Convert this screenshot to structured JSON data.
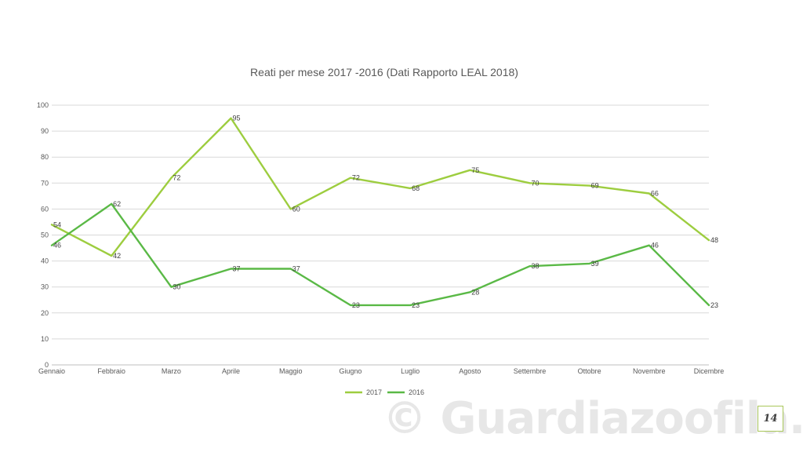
{
  "page_number": "14",
  "watermark": "© Guardiazoofila.it",
  "colors": {
    "series_2017": "#9dcd3f",
    "series_2016": "#5ab946",
    "grid": "#d9d9d9",
    "axis": "#bfbfbf"
  },
  "chart_data": {
    "type": "line",
    "title": "Reati per mese 2017 -2016 (Dati Rapporto LEAL 2018)",
    "xlabel": "",
    "ylabel": "",
    "ylim": [
      0,
      100
    ],
    "yticks": [
      0,
      10,
      20,
      30,
      40,
      50,
      60,
      70,
      80,
      90,
      100
    ],
    "grid": true,
    "legend_position": "bottom",
    "categories": [
      "Gennaio",
      "Febbraio",
      "Marzo",
      "Aprile",
      "Maggio",
      "Giugno",
      "Luglio",
      "Agosto",
      "Settembre",
      "Ottobre",
      "Novembre",
      "Dicembre"
    ],
    "series": [
      {
        "name": "2017",
        "values": [
          54,
          42,
          72,
          95,
          60,
          72,
          68,
          75,
          70,
          69,
          66,
          48
        ]
      },
      {
        "name": "2016",
        "values": [
          46,
          62,
          30,
          37,
          37,
          23,
          23,
          28,
          38,
          39,
          46,
          23
        ]
      }
    ]
  }
}
